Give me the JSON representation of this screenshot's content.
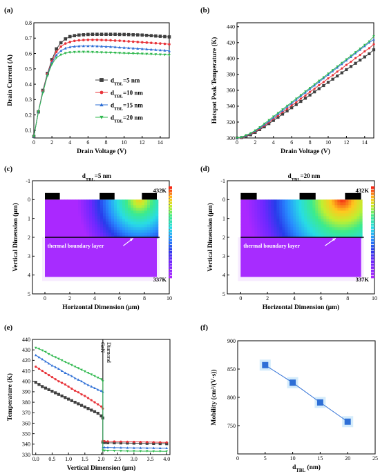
{
  "panels": {
    "a": {
      "label": "(a)"
    },
    "b": {
      "label": "(b)"
    },
    "c": {
      "label": "(c)",
      "title": "d",
      "title_sub": "TBL",
      "title_rest": "=5 nm"
    },
    "d": {
      "label": "(d)",
      "title": "d",
      "title_sub": "TBL",
      "title_rest": "=20 nm"
    },
    "e": {
      "label": "(e)"
    },
    "f": {
      "label": "(f)"
    }
  },
  "colors": {
    "s5": "#404040",
    "s10": "#e8343a",
    "s15": "#2e6fd6",
    "s20": "#2fb84e"
  },
  "chart_data": [
    {
      "id": "a",
      "type": "line",
      "xlabel": "Drain Voltage (V)",
      "ylabel": "Drain Current (A)",
      "xlim": [
        0,
        15
      ],
      "ylim": [
        0.05,
        0.8
      ],
      "xticks": [
        0,
        2,
        4,
        6,
        8,
        10,
        12,
        14
      ],
      "yticks": [
        0.1,
        0.2,
        0.3,
        0.4,
        0.5,
        0.6,
        0.7,
        0.8
      ],
      "legend": "center-right",
      "x": [
        0,
        0.5,
        1,
        1.5,
        2,
        2.5,
        3,
        3.5,
        4,
        4.5,
        5,
        5.5,
        6,
        6.5,
        7,
        7.5,
        8,
        8.5,
        9,
        9.5,
        10,
        10.5,
        11,
        11.5,
        12,
        12.5,
        13,
        13.5,
        14,
        14.5,
        15
      ],
      "series": [
        {
          "name_main": "d",
          "name_sub": "TBL",
          "name_rest": "=5 nm",
          "color": "#404040",
          "marker": "square",
          "values": [
            0.06,
            0.22,
            0.36,
            0.47,
            0.56,
            0.63,
            0.67,
            0.695,
            0.71,
            0.716,
            0.72,
            0.722,
            0.724,
            0.725,
            0.725,
            0.725,
            0.725,
            0.725,
            0.725,
            0.724,
            0.724,
            0.723,
            0.722,
            0.721,
            0.72,
            0.718,
            0.716,
            0.714,
            0.712,
            0.71,
            0.708
          ]
        },
        {
          "name_main": "d",
          "name_sub": "TBL",
          "name_rest": "=10 nm",
          "color": "#e8343a",
          "marker": "circle",
          "values": [
            0.06,
            0.22,
            0.355,
            0.465,
            0.55,
            0.61,
            0.645,
            0.665,
            0.675,
            0.682,
            0.686,
            0.688,
            0.689,
            0.689,
            0.689,
            0.688,
            0.687,
            0.686,
            0.684,
            0.683,
            0.681,
            0.679,
            0.677,
            0.675,
            0.673,
            0.671,
            0.669,
            0.667,
            0.665,
            0.663,
            0.66
          ]
        },
        {
          "name_main": "d",
          "name_sub": "TBL",
          "name_rest": "=15 nm",
          "color": "#2e6fd6",
          "marker": "triangle",
          "values": [
            0.06,
            0.22,
            0.35,
            0.46,
            0.54,
            0.59,
            0.618,
            0.634,
            0.642,
            0.646,
            0.648,
            0.649,
            0.649,
            0.649,
            0.648,
            0.647,
            0.645,
            0.644,
            0.642,
            0.64,
            0.638,
            0.636,
            0.634,
            0.632,
            0.63,
            0.628,
            0.626,
            0.624,
            0.622,
            0.62,
            0.617
          ]
        },
        {
          "name_main": "d",
          "name_sub": "TBL",
          "name_rest": "=20 nm",
          "color": "#2fb84e",
          "marker": "triangle-down",
          "values": [
            0.06,
            0.22,
            0.345,
            0.455,
            0.53,
            0.572,
            0.592,
            0.602,
            0.607,
            0.609,
            0.61,
            0.61,
            0.61,
            0.609,
            0.608,
            0.607,
            0.606,
            0.605,
            0.604,
            0.603,
            0.602,
            0.601,
            0.6,
            0.599,
            0.598,
            0.597,
            0.596,
            0.594,
            0.593,
            0.592,
            0.59
          ]
        }
      ]
    },
    {
      "id": "b",
      "type": "line",
      "xlabel": "Drain Voltage (V)",
      "ylabel": "Hotspot Peak Temperature (K)",
      "xlim": [
        0,
        15
      ],
      "ylim": [
        300,
        445
      ],
      "xticks": [
        0,
        2,
        4,
        6,
        8,
        10,
        12,
        14
      ],
      "yticks": [
        300,
        320,
        340,
        360,
        380,
        400,
        420,
        440
      ],
      "x": [
        0,
        0.5,
        1,
        1.5,
        2,
        2.5,
        3,
        3.5,
        4,
        4.5,
        5,
        5.5,
        6,
        6.5,
        7,
        7.5,
        8,
        8.5,
        9,
        9.5,
        10,
        10.5,
        11,
        11.5,
        12,
        12.5,
        13,
        13.5,
        14,
        14.5,
        15
      ],
      "series": [
        {
          "color": "#404040",
          "marker": "square",
          "values": [
            300,
            300.5,
            302,
            304,
            307,
            310.5,
            314,
            318,
            322,
            326,
            330,
            334,
            338,
            342,
            346,
            350,
            354,
            358,
            362,
            366,
            370,
            374,
            378,
            382,
            386,
            390,
            394,
            398,
            402,
            406,
            411
          ]
        },
        {
          "color": "#e8343a",
          "marker": "circle",
          "values": [
            300,
            300.5,
            302.5,
            305,
            308,
            311.5,
            315.5,
            319.5,
            324,
            328,
            332.5,
            336.5,
            341,
            345,
            349.5,
            353.5,
            358,
            362,
            366.5,
            370.5,
            375,
            379,
            383.5,
            387.5,
            392,
            396,
            400.5,
            404.5,
            409,
            413,
            418
          ]
        },
        {
          "color": "#2e6fd6",
          "marker": "triangle",
          "values": [
            300,
            301,
            303,
            305.5,
            309,
            312.5,
            316.5,
            321,
            325.5,
            330,
            334.5,
            339,
            343.5,
            348,
            352.5,
            357,
            361.5,
            366,
            370.5,
            375,
            379.5,
            384,
            388.5,
            393,
            397.5,
            402,
            406.5,
            411,
            415.5,
            420,
            424
          ]
        },
        {
          "color": "#2fb84e",
          "marker": "triangle-down",
          "values": [
            300,
            301,
            303.5,
            306,
            309.5,
            313.5,
            318,
            322.5,
            327,
            331.5,
            336,
            340.5,
            345,
            349.5,
            354,
            358.5,
            363,
            367.5,
            372,
            376.5,
            381,
            385.5,
            390,
            394.5,
            399,
            403.5,
            408,
            412.5,
            417,
            421.5,
            428
          ]
        }
      ]
    },
    {
      "id": "c",
      "type": "heatmap",
      "xlabel": "Horizontal Dimension (μm)",
      "ylabel": "Vertical Dimension (μm)",
      "xlim": [
        -1,
        10
      ],
      "ylim": [
        5,
        -1
      ],
      "xticks": [
        0,
        2,
        4,
        6,
        8,
        10
      ],
      "yticks": [
        -1,
        0,
        1,
        2,
        3,
        4,
        5
      ],
      "colorbar": {
        "max_label": "432K",
        "min_label": "337K"
      },
      "annotation": "thermal boundary layer",
      "hotspot_x": 7.6,
      "tbl_nm": 5
    },
    {
      "id": "d",
      "type": "heatmap",
      "xlabel": "Horizontal Dimension (μm)",
      "ylabel": "Vertical Dimension (μm)",
      "xlim": [
        -1,
        10
      ],
      "ylim": [
        5,
        -1
      ],
      "xticks": [
        0,
        2,
        4,
        6,
        8,
        10
      ],
      "yticks": [
        -1,
        0,
        1,
        2,
        3,
        4,
        5
      ],
      "colorbar": {
        "max_label": "432K",
        "min_label": "337K"
      },
      "annotation": "thermal boundary layer",
      "hotspot_x": 7.6,
      "tbl_nm": 20
    },
    {
      "id": "e",
      "type": "line",
      "xlabel": "Vertical Dimension (μm)",
      "ylabel": "Temperature (K)",
      "xlim": [
        -0.1,
        4.1
      ],
      "ylim": [
        330,
        440
      ],
      "xticks": [
        0.0,
        0.5,
        1.0,
        1.5,
        2.0,
        2.5,
        3.0,
        3.5,
        4.0
      ],
      "yticks": [
        330,
        340,
        350,
        360,
        370,
        380,
        390,
        400,
        410,
        420,
        430,
        440
      ],
      "annotations": [
        "GaN",
        "Diamond"
      ],
      "interface_x": 2.05,
      "series": [
        {
          "color": "#404040",
          "marker": "square",
          "x": [
            0,
            0.1,
            0.2,
            0.3,
            0.4,
            0.5,
            0.6,
            0.7,
            0.8,
            0.9,
            1.0,
            1.1,
            1.2,
            1.3,
            1.4,
            1.5,
            1.6,
            1.7,
            1.8,
            1.9,
            2.0,
            2.05,
            2.05,
            2.1,
            2.2,
            2.4,
            2.6,
            2.8,
            3.0,
            3.2,
            3.4,
            3.6,
            3.8,
            4.0
          ],
          "values": [
            399,
            397,
            395,
            393.5,
            392,
            390.5,
            389,
            387.5,
            386,
            384.5,
            383,
            381.5,
            380,
            378.5,
            377,
            375.5,
            374,
            372.5,
            371,
            369.5,
            367,
            365,
            342,
            341.5,
            341.3,
            341.2,
            341.1,
            341,
            340.9,
            340.8,
            340.7,
            340.6,
            340.5,
            340.4
          ]
        },
        {
          "color": "#e8343a",
          "marker": "circle",
          "x": [
            0,
            0.1,
            0.2,
            0.3,
            0.4,
            0.5,
            0.6,
            0.7,
            0.8,
            0.9,
            1.0,
            1.1,
            1.2,
            1.3,
            1.4,
            1.5,
            1.6,
            1.7,
            1.8,
            1.9,
            2.0,
            2.05,
            2.05,
            2.1,
            2.2,
            2.4,
            2.6,
            2.8,
            3.0,
            3.2,
            3.4,
            3.6,
            3.8,
            4.0
          ],
          "values": [
            414,
            412,
            410,
            408,
            406,
            404,
            402,
            400,
            398.5,
            397,
            395,
            393,
            391,
            389.5,
            387.5,
            386,
            384,
            382,
            380,
            378,
            376,
            374,
            343,
            342.8,
            342.6,
            342.5,
            342.4,
            342.3,
            342.2,
            342.1,
            342,
            341.9,
            341.8,
            341.7
          ]
        },
        {
          "color": "#2e6fd6",
          "marker": "triangle",
          "x": [
            0,
            0.1,
            0.2,
            0.3,
            0.4,
            0.5,
            0.6,
            0.7,
            0.8,
            0.9,
            1.0,
            1.1,
            1.2,
            1.3,
            1.4,
            1.5,
            1.6,
            1.7,
            1.8,
            1.9,
            2.0,
            2.05,
            2.05,
            2.1,
            2.2,
            2.4,
            2.6,
            2.8,
            3.0,
            3.2,
            3.4,
            3.6,
            3.8,
            4.0
          ],
          "values": [
            425,
            423,
            421,
            419,
            417,
            415,
            413.5,
            412,
            410,
            408,
            406.5,
            405,
            403,
            401.5,
            400,
            398,
            396.5,
            395,
            393.5,
            392,
            391,
            390,
            337,
            336.9,
            336.8,
            336.7,
            336.6,
            336.5,
            336.4,
            336.4,
            336.3,
            336.3,
            336.2,
            336.2
          ]
        },
        {
          "color": "#2fb84e",
          "marker": "triangle-down",
          "x": [
            0,
            0.1,
            0.2,
            0.3,
            0.4,
            0.5,
            0.6,
            0.7,
            0.8,
            0.9,
            1.0,
            1.1,
            1.2,
            1.3,
            1.4,
            1.5,
            1.6,
            1.7,
            1.8,
            1.9,
            2.0,
            2.05,
            2.05,
            2.1,
            2.2,
            2.4,
            2.6,
            2.8,
            3.0,
            3.2,
            3.4,
            3.6,
            3.8,
            4.0
          ],
          "values": [
            432,
            431,
            429.5,
            428,
            426,
            424.5,
            423,
            421.5,
            420,
            418.5,
            417,
            415.5,
            414,
            412.5,
            411,
            409.5,
            408,
            406.5,
            405,
            403.5,
            402,
            400,
            334,
            333.8,
            333.7,
            333.6,
            333.5,
            333.4,
            333.4,
            333.3,
            333.3,
            333.2,
            333.2,
            333.1
          ]
        }
      ]
    },
    {
      "id": "f",
      "type": "line",
      "xlabel_main": "d",
      "xlabel_sub": "TBL",
      "xlabel_rest": " (nm)",
      "ylabel": "Mobility (cm²/(V·s))",
      "xlim": [
        0,
        25
      ],
      "ylim": [
        700,
        900
      ],
      "xticks": [
        0,
        5,
        10,
        15,
        20,
        25
      ],
      "yticks": [
        750,
        800,
        850,
        900
      ],
      "x": [
        5,
        10,
        15,
        20
      ],
      "values": [
        857,
        826,
        791,
        757
      ],
      "color": "#2e6fd6",
      "marker": "square"
    }
  ]
}
